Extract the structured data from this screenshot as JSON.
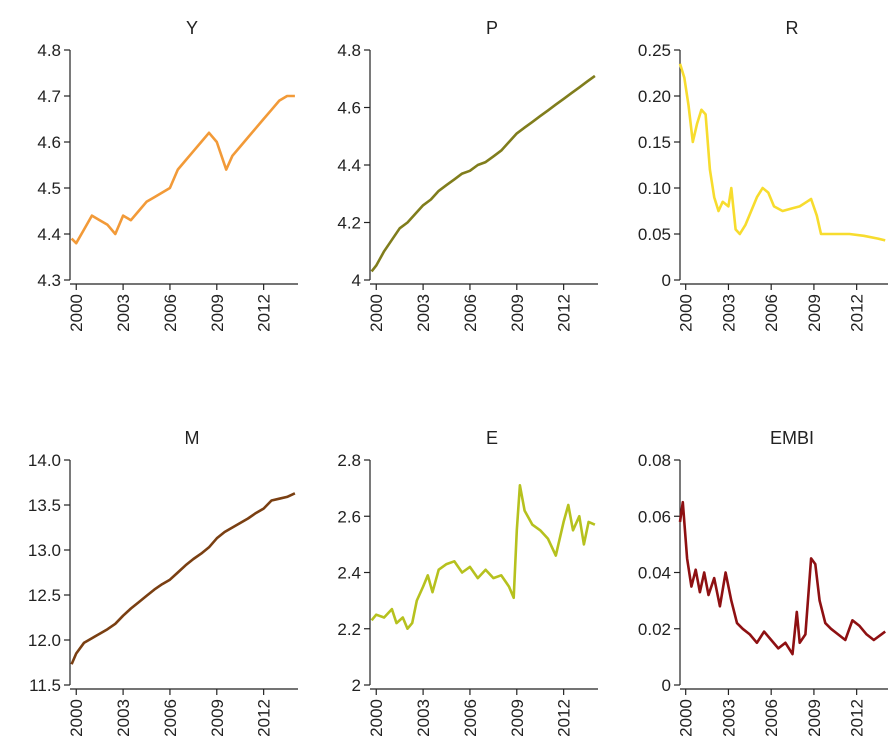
{
  "chart_data": [
    {
      "type": "line",
      "title": "Y",
      "color": "#f29a38",
      "x": [
        1999.7,
        2000,
        2000.5,
        2001,
        2001.5,
        2002,
        2002.5,
        2003,
        2003.5,
        2004,
        2004.5,
        2005,
        2005.5,
        2006,
        2006.5,
        2007,
        2007.5,
        2008,
        2008.5,
        2009,
        2009.3,
        2009.6,
        2010,
        2010.5,
        2011,
        2011.5,
        2012,
        2012.5,
        2013,
        2013.5,
        2014
      ],
      "values": [
        4.39,
        4.38,
        4.41,
        4.44,
        4.43,
        4.42,
        4.4,
        4.44,
        4.43,
        4.45,
        4.47,
        4.48,
        4.49,
        4.5,
        4.54,
        4.56,
        4.58,
        4.6,
        4.62,
        4.6,
        4.57,
        4.54,
        4.57,
        4.59,
        4.61,
        4.63,
        4.65,
        4.67,
        4.69,
        4.7,
        4.7
      ],
      "xlim": [
        1999.6,
        2014.2
      ],
      "xticks": [
        2000,
        2003,
        2006,
        2009,
        2012
      ],
      "ylim": [
        4.3,
        4.8
      ],
      "yticks": [
        4.3,
        4.4,
        4.5,
        4.6,
        4.7,
        4.8
      ]
    },
    {
      "type": "line",
      "title": "P",
      "color": "#807d1c",
      "x": [
        1999.7,
        2000,
        2000.5,
        2001,
        2001.5,
        2002,
        2002.5,
        2003,
        2003.5,
        2004,
        2004.5,
        2005,
        2005.5,
        2006,
        2006.5,
        2007,
        2007.5,
        2008,
        2008.5,
        2009,
        2009.5,
        2010,
        2010.5,
        2011,
        2011.5,
        2012,
        2012.5,
        2013,
        2013.5,
        2014
      ],
      "values": [
        4.03,
        4.05,
        4.1,
        4.14,
        4.18,
        4.2,
        4.23,
        4.26,
        4.28,
        4.31,
        4.33,
        4.35,
        4.37,
        4.38,
        4.4,
        4.41,
        4.43,
        4.45,
        4.48,
        4.51,
        4.53,
        4.55,
        4.57,
        4.59,
        4.61,
        4.63,
        4.65,
        4.67,
        4.69,
        4.71
      ],
      "xlim": [
        1999.6,
        2014.2
      ],
      "xticks": [
        2000,
        2003,
        2006,
        2009,
        2012
      ],
      "ylim": [
        4,
        4.8
      ],
      "yticks": [
        4,
        4.2,
        4.4,
        4.6,
        4.8
      ]
    },
    {
      "type": "line",
      "title": "R",
      "color": "#f7dc2e",
      "x": [
        1999.6,
        1999.9,
        2000.2,
        2000.5,
        2000.8,
        2001.1,
        2001.4,
        2001.7,
        2002,
        2002.3,
        2002.6,
        2003,
        2003.2,
        2003.5,
        2003.8,
        2004.2,
        2004.6,
        2005,
        2005.4,
        2005.8,
        2006.2,
        2006.8,
        2007.5,
        2008,
        2008.5,
        2008.8,
        2009.2,
        2009.5,
        2010.5,
        2011.5,
        2012.5,
        2013.5,
        2014
      ],
      "values": [
        0.235,
        0.22,
        0.19,
        0.15,
        0.17,
        0.185,
        0.18,
        0.12,
        0.09,
        0.075,
        0.085,
        0.08,
        0.1,
        0.055,
        0.05,
        0.06,
        0.075,
        0.09,
        0.1,
        0.095,
        0.08,
        0.075,
        0.078,
        0.08,
        0.085,
        0.088,
        0.07,
        0.05,
        0.05,
        0.05,
        0.048,
        0.045,
        0.043
      ],
      "xlim": [
        1999.6,
        2014.2
      ],
      "xticks": [
        2000,
        2003,
        2006,
        2009,
        2012
      ],
      "ylim": [
        0,
        0.25
      ],
      "yticks": [
        0,
        0.05,
        {
          "value": 0.1,
          "label": "0.10"
        },
        0.15,
        {
          "value": 0.2,
          "label": "0.20"
        },
        0.25
      ]
    },
    {
      "type": "line",
      "title": "M",
      "color": "#7a3f12",
      "x": [
        1999.7,
        2000,
        2000.5,
        2001,
        2001.5,
        2002,
        2002.5,
        2003,
        2003.5,
        2004,
        2004.5,
        2005,
        2005.5,
        2006,
        2006.5,
        2007,
        2007.5,
        2008,
        2008.5,
        2009,
        2009.5,
        2010,
        2010.5,
        2011,
        2011.5,
        2012,
        2012.5,
        2013,
        2013.5,
        2014
      ],
      "values": [
        11.73,
        11.85,
        11.97,
        12.02,
        12.07,
        12.12,
        12.18,
        12.27,
        12.35,
        12.42,
        12.49,
        12.56,
        12.62,
        12.67,
        12.75,
        12.83,
        12.9,
        12.96,
        13.03,
        13.13,
        13.2,
        13.25,
        13.3,
        13.35,
        13.41,
        13.46,
        13.55,
        13.57,
        13.59,
        13.63
      ],
      "xlim": [
        1999.6,
        2014.2
      ],
      "xticks": [
        2000,
        2003,
        2006,
        2009,
        2012
      ],
      "ylim": [
        11.5,
        14
      ],
      "yticks": [
        11.5,
        {
          "value": 12,
          "label": "12.0"
        },
        12.5,
        {
          "value": 13,
          "label": "13.0"
        },
        13.5,
        {
          "value": 14,
          "label": "14.0"
        }
      ]
    },
    {
      "type": "line",
      "title": "E",
      "color": "#b6c11e",
      "x": [
        1999.7,
        2000,
        2000.5,
        2001,
        2001.3,
        2001.7,
        2002,
        2002.3,
        2002.6,
        2003,
        2003.3,
        2003.6,
        2004,
        2004.5,
        2005,
        2005.5,
        2006,
        2006.5,
        2007,
        2007.5,
        2008,
        2008.5,
        2008.8,
        2009,
        2009.2,
        2009.5,
        2010,
        2010.5,
        2011,
        2011.5,
        2012,
        2012.3,
        2012.6,
        2013,
        2013.3,
        2013.6,
        2014
      ],
      "values": [
        2.23,
        2.25,
        2.24,
        2.27,
        2.22,
        2.24,
        2.2,
        2.22,
        2.3,
        2.35,
        2.39,
        2.33,
        2.41,
        2.43,
        2.44,
        2.4,
        2.42,
        2.38,
        2.41,
        2.38,
        2.39,
        2.35,
        2.31,
        2.55,
        2.71,
        2.62,
        2.57,
        2.55,
        2.52,
        2.46,
        2.58,
        2.64,
        2.55,
        2.6,
        2.5,
        2.58,
        2.57
      ],
      "xlim": [
        1999.6,
        2014.2
      ],
      "xticks": [
        2000,
        2003,
        2006,
        2009,
        2012
      ],
      "ylim": [
        2,
        2.8
      ],
      "yticks": [
        2,
        2.2,
        2.4,
        2.6,
        2.8
      ]
    },
    {
      "type": "line",
      "title": "EMBI",
      "color": "#8e1012",
      "x": [
        1999.6,
        1999.8,
        2000.1,
        2000.4,
        2000.7,
        2001,
        2001.3,
        2001.6,
        2002,
        2002.4,
        2002.8,
        2003.2,
        2003.6,
        2004,
        2004.5,
        2005,
        2005.5,
        2006,
        2006.5,
        2007,
        2007.5,
        2007.8,
        2008,
        2008.4,
        2008.8,
        2009.1,
        2009.4,
        2009.8,
        2010.2,
        2010.7,
        2011.2,
        2011.7,
        2012.2,
        2012.7,
        2013.2,
        2014
      ],
      "values": [
        0.058,
        0.065,
        0.045,
        0.035,
        0.041,
        0.033,
        0.04,
        0.032,
        0.038,
        0.028,
        0.04,
        0.03,
        0.022,
        0.02,
        0.018,
        0.015,
        0.019,
        0.016,
        0.013,
        0.015,
        0.011,
        0.026,
        0.015,
        0.018,
        0.045,
        0.043,
        0.03,
        0.022,
        0.02,
        0.018,
        0.016,
        0.023,
        0.021,
        0.018,
        0.016,
        0.019
      ],
      "xlim": [
        1999.6,
        2014.2
      ],
      "xticks": [
        2000,
        2003,
        2006,
        2009,
        2012
      ],
      "ylim": [
        0,
        0.08
      ],
      "yticks": [
        0,
        0.02,
        0.04,
        0.06,
        0.08
      ]
    }
  ]
}
